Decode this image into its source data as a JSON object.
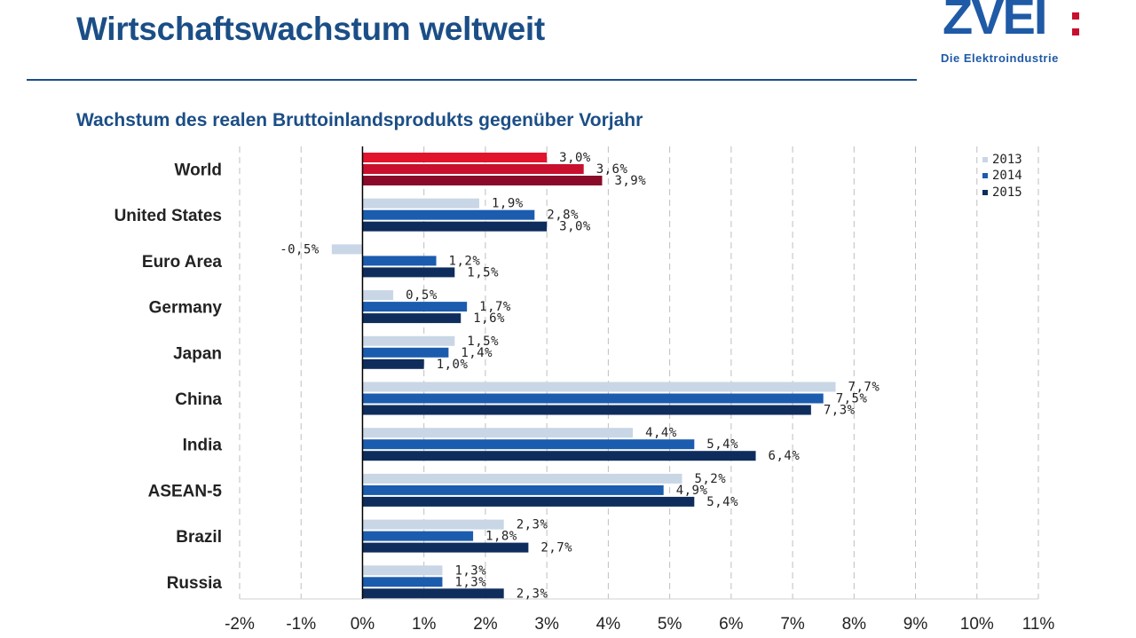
{
  "slide": {
    "title": "Wirtschaftswachstum weltweit",
    "logo_text": "ZVEI",
    "logo_tagline": "Die Elektroindustrie"
  },
  "colors": {
    "title": "#1b4e86",
    "world_2013": "#e2142d",
    "world_2014": "#c8102e",
    "world_2015": "#8a0a2a",
    "series_2013": "#c9d6e6",
    "series_2014": "#1b5cae",
    "series_2015": "#0f2d5c",
    "grid": "#bfbfbf"
  },
  "chart_data": {
    "type": "bar",
    "orientation": "horizontal",
    "title": "Wachstum des realen Bruttoinlandsprodukts gegenüber Vorjahr",
    "categories": [
      "World",
      "United States",
      "Euro Area",
      "Germany",
      "Japan",
      "China",
      "India",
      "ASEAN-5",
      "Brazil",
      "Russia"
    ],
    "series": [
      {
        "name": "2013",
        "values": [
          3.0,
          1.9,
          -0.5,
          0.5,
          1.5,
          7.7,
          4.4,
          5.2,
          2.3,
          1.3
        ]
      },
      {
        "name": "2014",
        "values": [
          3.6,
          2.8,
          1.2,
          1.7,
          1.4,
          7.5,
          5.4,
          4.9,
          1.8,
          1.3
        ]
      },
      {
        "name": "2015",
        "values": [
          3.9,
          3.0,
          1.5,
          1.6,
          1.0,
          7.3,
          6.4,
          5.4,
          2.7,
          2.3
        ]
      }
    ],
    "data_labels": [
      [
        "3,0%",
        "1,9%",
        "-0,5%",
        "0,5%",
        "1,5%",
        "7,7%",
        "4,4%",
        "5,2%",
        "2,3%",
        "1,3%"
      ],
      [
        "3,6%",
        "2,8%",
        "1,2%",
        "1,7%",
        "1,4%",
        "7,5%",
        "5,4%",
        "4,9%",
        "1,8%",
        "1,3%"
      ],
      [
        "3,9%",
        "3,0%",
        "1,5%",
        "1,6%",
        "1,0%",
        "7,3%",
        "6,4%",
        "5,4%",
        "2,7%",
        "2,3%"
      ]
    ],
    "xlim": [
      -2,
      11
    ],
    "x_ticks": [
      -2,
      -1,
      0,
      1,
      2,
      3,
      4,
      5,
      6,
      7,
      8,
      9,
      10,
      11
    ],
    "x_tick_labels": [
      "-2%",
      "-1%",
      "0%",
      "1%",
      "2%",
      "3%",
      "4%",
      "5%",
      "6%",
      "7%",
      "8%",
      "9%",
      "10%",
      "11%"
    ],
    "legend": {
      "entries": [
        "2013",
        "2014",
        "2015"
      ],
      "position": "top-right"
    },
    "grid": {
      "vertical": true,
      "style": "dashed"
    },
    "xlabel": "",
    "ylabel": ""
  }
}
